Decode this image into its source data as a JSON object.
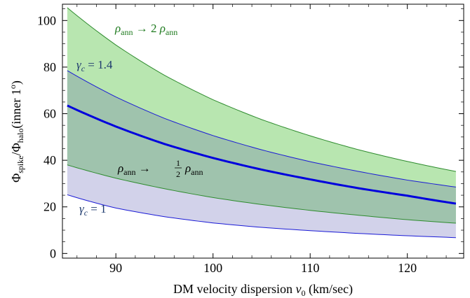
{
  "chart_data": {
    "type": "area",
    "title": "",
    "xlabel": {
      "pre": "DM velocity dispersion ",
      "var": "v",
      "sub": "0",
      "post": " (km/sec)"
    },
    "ylabel": {
      "phi1": "Φ",
      "sub1": "spike",
      "slash": "/",
      "phi2": "Φ",
      "sub2": "halo",
      "rest": "(inner 1",
      "sup": "o",
      "close": ")"
    },
    "xlim": [
      84.5,
      125.8
    ],
    "ylim": [
      -2,
      107
    ],
    "xticks": [
      90,
      100,
      110,
      120
    ],
    "yticks": [
      0,
      20,
      40,
      60,
      80,
      100
    ],
    "grid": false,
    "legend": "none",
    "colors": {
      "green_band": "#b8e6b0",
      "blue_band": "#d2d2ea",
      "overlap": "#9fc3ad",
      "green_line": "#2e8b2e",
      "blue_line": "#1a1ad6",
      "main_line": "#0000dd",
      "green_text": "#1e7a1e",
      "blue_text": "#1e3a6e"
    },
    "x": [
      85,
      90,
      95,
      100,
      105,
      110,
      115,
      120,
      125
    ],
    "series": [
      {
        "role": "blue_upper",
        "values": [
          78.5,
          67.2,
          58.0,
          50.6,
          44.5,
          39.4,
          35.2,
          31.5,
          28.5
        ]
      },
      {
        "role": "blue_lower",
        "values": [
          25.2,
          19.5,
          15.8,
          13.1,
          11.2,
          9.8,
          8.6,
          7.6,
          6.8
        ]
      },
      {
        "role": "green_upper",
        "values": [
          105.5,
          89.5,
          76.5,
          66.0,
          57.5,
          50.5,
          44.5,
          39.5,
          35.2
        ]
      },
      {
        "role": "green_lower",
        "values": [
          38.0,
          32.3,
          27.8,
          24.0,
          21.0,
          18.5,
          16.4,
          14.5,
          13.0
        ]
      },
      {
        "role": "main",
        "values": [
          63.5,
          54.5,
          47.0,
          41.0,
          36.0,
          31.8,
          28.0,
          24.8,
          21.4
        ]
      }
    ],
    "annotations": {
      "top": {
        "rho": "ρ",
        "sub": "ann",
        "arrow": " → 2 ",
        "rho2": "ρ",
        "sub2": "ann"
      },
      "gamma_upper": {
        "gamma": "γ",
        "sub": "c",
        "rest": " = 1.4"
      },
      "middle": {
        "rho": "ρ",
        "sub": "ann",
        "arrow": " → ",
        "num": "1",
        "den": "2",
        "rho2": "ρ",
        "sub2": "ann"
      },
      "gamma_lower": {
        "gamma": "γ",
        "sub": "c",
        "rest": " = 1"
      }
    }
  }
}
